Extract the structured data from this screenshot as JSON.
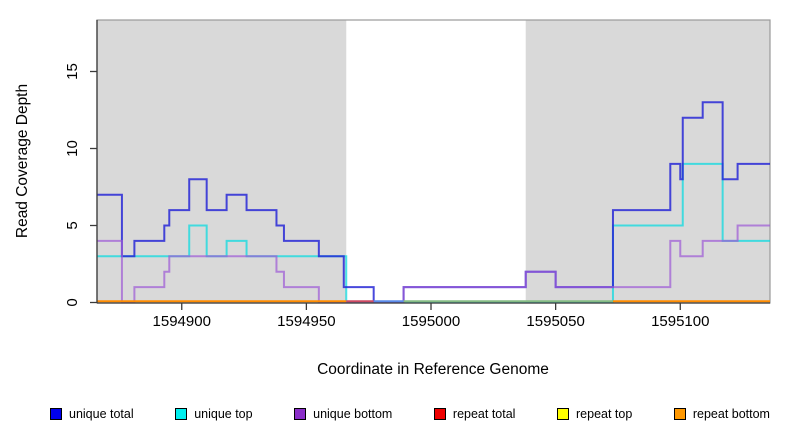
{
  "chart_data": {
    "type": "line",
    "subtype": "step-coverage",
    "title": "",
    "xlabel": "Coordinate in Reference Genome",
    "ylabel": "Read Coverage Depth",
    "x_range": [
      1594866,
      1595136
    ],
    "y_range": [
      0,
      18
    ],
    "x_ticks": [
      1594900,
      1594950,
      1595000,
      1595050,
      1595100
    ],
    "y_ticks": [
      0,
      5,
      10,
      15
    ],
    "grid": false,
    "background_color": "#ffffff",
    "shaded_regions": [
      {
        "from": 1594866,
        "to": 1594966,
        "color": "#d9d9d9"
      },
      {
        "from": 1595038,
        "to": 1595136,
        "color": "#d9d9d9"
      }
    ],
    "series": [
      {
        "name": "unique top",
        "color": "rgba(0,218,224,0.70)",
        "steps": [
          [
            1594866,
            3
          ],
          [
            1594903,
            5
          ],
          [
            1594910,
            3
          ],
          [
            1594918,
            4
          ],
          [
            1594926,
            3
          ],
          [
            1594966,
            0
          ],
          [
            1595073,
            5
          ],
          [
            1595101,
            9
          ],
          [
            1595117,
            4
          ],
          [
            1595136,
            4
          ]
        ]
      },
      {
        "name": "unique total",
        "color": "rgba(40,40,214,0.85)",
        "steps": [
          [
            1594866,
            7
          ],
          [
            1594876,
            3
          ],
          [
            1594881,
            4
          ],
          [
            1594893,
            5
          ],
          [
            1594895,
            6
          ],
          [
            1594903,
            8
          ],
          [
            1594910,
            6
          ],
          [
            1594918,
            7
          ],
          [
            1594926,
            6
          ],
          [
            1594938,
            5
          ],
          [
            1594941,
            4
          ],
          [
            1594955,
            3
          ],
          [
            1594965,
            1
          ],
          [
            1594977,
            0
          ],
          [
            1594989,
            1
          ],
          [
            1595038,
            2
          ],
          [
            1595050,
            1
          ],
          [
            1595073,
            6
          ],
          [
            1595096,
            9
          ],
          [
            1595100,
            8
          ],
          [
            1595101,
            12
          ],
          [
            1595109,
            13
          ],
          [
            1595117,
            8
          ],
          [
            1595123,
            9
          ],
          [
            1595136,
            9
          ]
        ]
      },
      {
        "name": "unique bottom",
        "color": "rgba(158,92,214,0.72)",
        "steps": [
          [
            1594866,
            4
          ],
          [
            1594876,
            0
          ],
          [
            1594881,
            1
          ],
          [
            1594893,
            2
          ],
          [
            1594895,
            3
          ],
          [
            1594938,
            2
          ],
          [
            1594941,
            1
          ],
          [
            1594955,
            0
          ],
          [
            1594989,
            1
          ],
          [
            1595038,
            2
          ],
          [
            1595050,
            1
          ],
          [
            1595096,
            4
          ],
          [
            1595100,
            3
          ],
          [
            1595109,
            4
          ],
          [
            1595123,
            5
          ],
          [
            1595136,
            5
          ]
        ]
      }
    ],
    "zero_line_segments": [
      {
        "name": "repeat bottom left",
        "color": "#ff8c00",
        "from": 1594866,
        "to": 1594966
      },
      {
        "name": "repeat total gap",
        "color": "#cd4a63",
        "from": 1594966,
        "to": 1594977
      },
      {
        "name": "unique total zero",
        "color": "#5a8ae8",
        "from": 1594977,
        "to": 1594989
      },
      {
        "name": "gap overlap",
        "color": "#84bc84",
        "from": 1594989,
        "to": 1595073
      },
      {
        "name": "repeat bottom right",
        "color": "#ff8c00",
        "from": 1595073,
        "to": 1595136
      }
    ],
    "legend": [
      {
        "label": "unique total",
        "color": "#0000ee"
      },
      {
        "label": "unique top",
        "color": "#00eeee"
      },
      {
        "label": "unique bottom",
        "color": "#8b2fc9"
      },
      {
        "label": "repeat total",
        "color": "#ee0000"
      },
      {
        "label": "repeat top",
        "color": "#ffff00"
      },
      {
        "label": "repeat bottom",
        "color": "#ff9800"
      }
    ],
    "axis_colors": {
      "frame": "#9a9a9a",
      "axis": "#3a3a3a"
    }
  }
}
